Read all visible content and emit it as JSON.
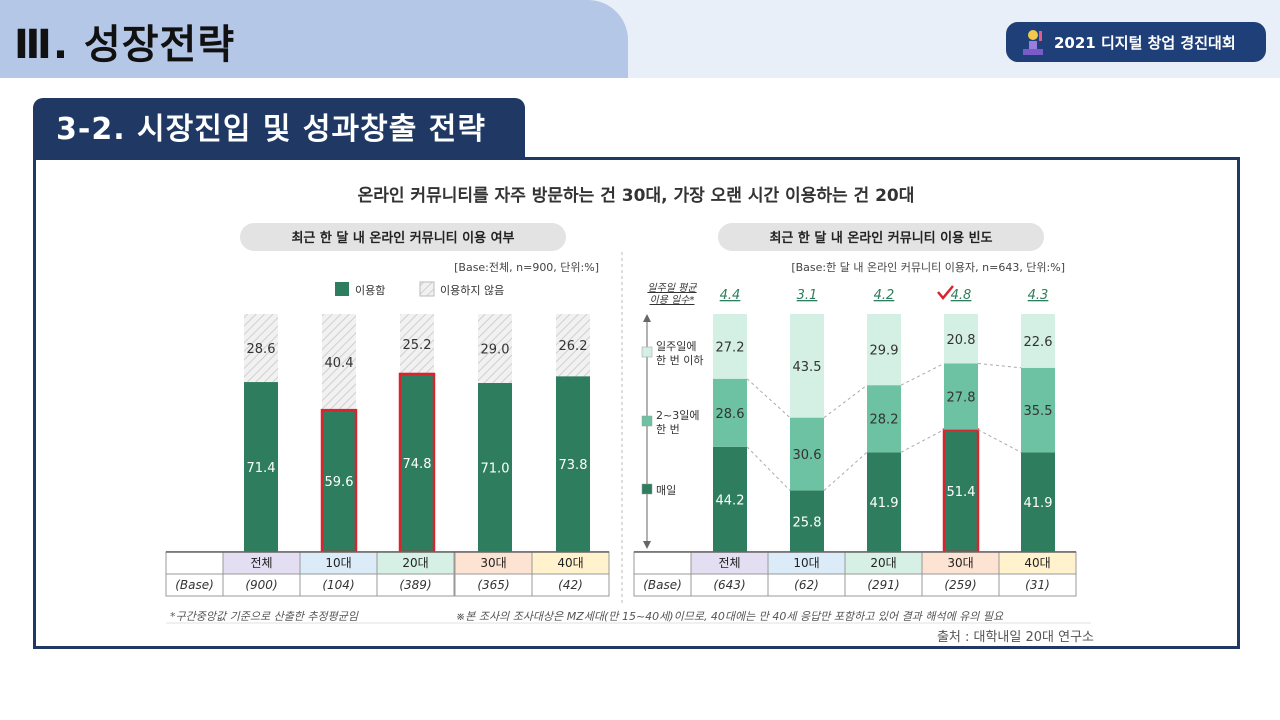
{
  "header": {
    "page_title": "Ⅲ. 성장전략",
    "badge_text": "2021 디지털 창업 경진대회",
    "section_title": "3-2. 시장진입 및 성과창출 전략"
  },
  "colors": {
    "dark_green": "#2e7d5e",
    "mid_green": "#6cc2a2",
    "light_green": "#d4f0e4",
    "hatch_gray": "#cfcfcf",
    "highlight_red": "#d9232e",
    "navy": "#1f3864",
    "check_red": "#d9232e"
  },
  "chart_data": [
    {
      "type": "bar",
      "subtitle": "최근 한 달 내 온라인 커뮤니티 이용 여부",
      "base_note": "[Base:전체, n=900, 단위:%]",
      "categories": [
        "전체",
        "10대",
        "20대",
        "30대",
        "40대"
      ],
      "base_label": "(Base)",
      "bases": [
        "(900)",
        "(104)",
        "(389)",
        "(365)",
        "(42)"
      ],
      "series": [
        {
          "name": "이용함",
          "values": [
            71.4,
            59.6,
            74.8,
            71.0,
            73.8
          ]
        },
        {
          "name": "이용하지 않음",
          "values": [
            28.6,
            40.4,
            25.2,
            29.0,
            26.2
          ]
        }
      ],
      "highlighted": [
        "10대",
        "20대"
      ],
      "stacked": true,
      "ylim": [
        0,
        100
      ],
      "grid": false,
      "legend": "top-right"
    },
    {
      "type": "bar",
      "subtitle": "최근 한 달 내 온라인 커뮤니티 이용 빈도",
      "base_note": "[Base:한 달 내 온라인 커뮤니티 이용자, n=643, 단위:%]",
      "avg_days_label": "일주일 평균\n이용 일수*",
      "avg_days": [
        "4.4",
        "3.1",
        "4.2",
        "4.8",
        "4.3"
      ],
      "avg_days_checked": "30대",
      "categories": [
        "전체",
        "10대",
        "20대",
        "30대",
        "40대"
      ],
      "base_label": "(Base)",
      "bases": [
        "(643)",
        "(62)",
        "(291)",
        "(259)",
        "(31)"
      ],
      "series": [
        {
          "name": "매일",
          "values": [
            44.2,
            25.8,
            41.9,
            51.4,
            41.9
          ]
        },
        {
          "name": "2~3일에\n한 번",
          "values": [
            28.6,
            30.6,
            28.2,
            27.8,
            35.5
          ]
        },
        {
          "name": "일주일에\n한 번 이하",
          "values": [
            27.2,
            43.5,
            29.9,
            20.8,
            22.6
          ]
        }
      ],
      "highlighted": [
        "30대"
      ],
      "stacked": true,
      "ylim": [
        0,
        100
      ],
      "grid": false,
      "legend": "left"
    }
  ],
  "figure": {
    "title": "온라인 커뮤니티를 자주 방문하는 건 30대, 가장 오랜 시간 이용하는 건 20대",
    "footnote_left": "*구간중앙값 기준으로 산출한 추정평균임",
    "footnote_right": "※본 조사의 조사대상은 MZ세대(만 15~40세)이므로, 40대에는 만 40세 응답만 포함하고 있어 결과 해석에 유의 필요",
    "source": "출처 : 대학내일 20대 연구소"
  }
}
